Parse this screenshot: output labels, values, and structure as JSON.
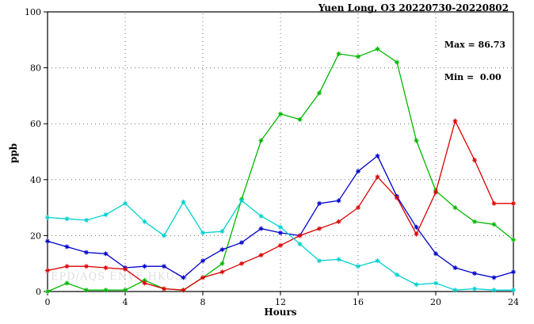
{
  "watermark": "EPD/AQS ENVF HKUST",
  "annotation": {
    "max_label": "Max = 86.73",
    "min_label": "Min =  0.00"
  },
  "chart_data": {
    "type": "line",
    "title": "Yuen Long, O3 20220730-20220802",
    "xlabel": "Hours",
    "ylabel": "ppb",
    "xlim": [
      0,
      24
    ],
    "ylim": [
      0,
      100
    ],
    "xticks": [
      0,
      4,
      8,
      12,
      16,
      20,
      24
    ],
    "yticks": [
      0,
      20,
      40,
      60,
      80,
      100
    ],
    "grid": true,
    "legend": "none",
    "marker": "asterisk",
    "max": 86.73,
    "min": 0.0,
    "x": [
      0,
      1,
      2,
      3,
      4,
      5,
      6,
      7,
      8,
      9,
      10,
      11,
      12,
      13,
      14,
      15,
      16,
      17,
      18,
      19,
      20,
      21,
      22,
      23,
      24
    ],
    "series": [
      {
        "name": "green",
        "color": "#00b800",
        "values": [
          0,
          3,
          0.5,
          0.5,
          0.5,
          4,
          1,
          0.5,
          5,
          10,
          33,
          54,
          63.5,
          61.5,
          71,
          85,
          84,
          86.73,
          82,
          54,
          36,
          30,
          25,
          24,
          18.5
        ]
      },
      {
        "name": "blue",
        "color": "#0000cc",
        "values": [
          18,
          16,
          14,
          13.5,
          8.5,
          9,
          9,
          5,
          11,
          15,
          17.5,
          22.5,
          21,
          20,
          31.5,
          32.5,
          43,
          48.5,
          34,
          23,
          13.5,
          8.5,
          6.5,
          5,
          7
        ]
      },
      {
        "name": "red",
        "color": "#dd0000",
        "values": [
          7.5,
          9,
          9,
          8.5,
          8,
          3,
          1,
          0.5,
          5,
          7,
          10,
          13,
          16.5,
          20,
          22.5,
          25,
          30,
          41,
          33.5,
          20.5,
          35.5,
          61,
          47,
          31.5,
          31.5
        ]
      },
      {
        "name": "cyan",
        "color": "#00d0d0",
        "values": [
          26.5,
          26,
          25.5,
          27.5,
          31.5,
          25,
          20,
          32,
          21,
          21.5,
          32.5,
          27,
          23,
          17,
          11,
          11.5,
          9,
          11,
          6,
          2.5,
          3,
          0.5,
          1,
          0.5,
          0.5
        ]
      }
    ]
  }
}
